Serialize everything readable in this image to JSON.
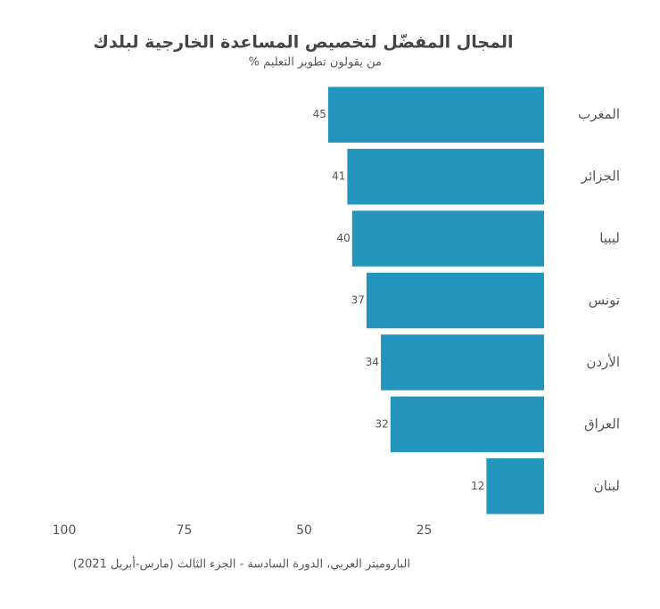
{
  "chart_data": {
    "type": "hbar",
    "title": "المجال المفضّل لتخصيص المساعدة الخارجية لبلدك",
    "subtitle": "% من يقولون تطوير التعليم",
    "source": "الباروميتر العربي، الدورة السادسة - الجزء الثالث (مارس-أبريل 2021)",
    "categories": [
      "المغرب",
      "الجزائر",
      "ليبيا",
      "تونس",
      "الأردن",
      "العراق",
      "لبنان"
    ],
    "values": [
      45,
      41,
      40,
      37,
      34,
      32,
      12
    ],
    "color": "#2394bb",
    "xlim": [
      0,
      100
    ],
    "xticks": [
      25,
      50,
      75,
      100
    ],
    "x_reversed": true
  }
}
